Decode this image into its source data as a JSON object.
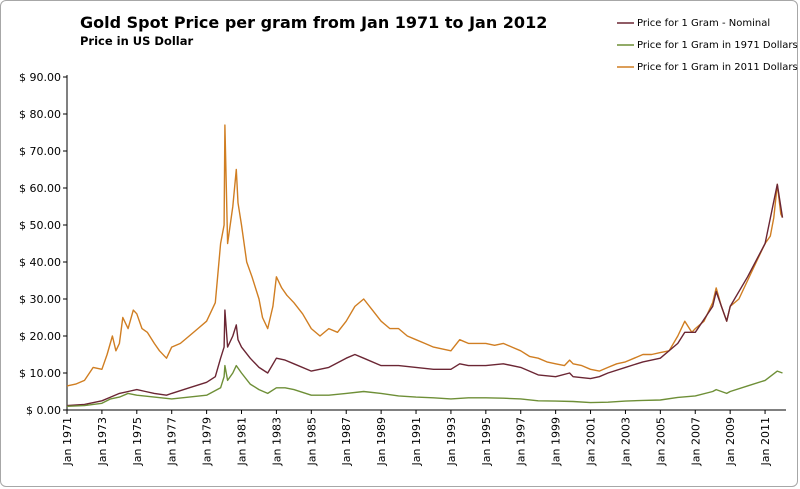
{
  "chart_data": {
    "type": "line",
    "title": "Gold Spot Price per gram from Jan 1971 to Jan 2012",
    "subtitle": "Price in US Dollar",
    "xlabel": "",
    "ylabel": "",
    "xlim": [
      1971,
      2012.2
    ],
    "ylim": [
      0,
      90
    ],
    "y_ticks": [
      0,
      10,
      20,
      30,
      40,
      50,
      60,
      70,
      80,
      90
    ],
    "y_tick_labels": [
      "$ 0.00",
      "$ 10.00",
      "$ 20.00",
      "$ 30.00",
      "$ 40.00",
      "$ 50.00",
      "$ 60.00",
      "$ 70.00",
      "$ 80.00",
      "$ 90.00"
    ],
    "x_ticks": [
      1971,
      1973,
      1975,
      1977,
      1979,
      1981,
      1983,
      1985,
      1987,
      1989,
      1991,
      1993,
      1995,
      1997,
      1999,
      2001,
      2003,
      2005,
      2007,
      2009,
      2011
    ],
    "x_tick_labels": [
      "Jan 1971",
      "Jan 1973",
      "Jan 1975",
      "Jan 1977",
      "Jan 1979",
      "Jan 1981",
      "Jan 1983",
      "Jan 1985",
      "Jan 1987",
      "Jan 1989",
      "Jan 1991",
      "Jan 1993",
      "Jan 1995",
      "Jan 1997",
      "Jan 1999",
      "Jan 2001",
      "Jan 2003",
      "Jan 2005",
      "Jan 2007",
      "Jan 2009",
      "Jan 2011"
    ],
    "grid": false,
    "legend_position": "top-right",
    "series": [
      {
        "name": "Price for 1 Gram in 2011 Dollars",
        "color": "#d07e22",
        "x": [
          1971.0,
          1971.5,
          1972.0,
          1972.5,
          1973.0,
          1973.3,
          1973.6,
          1973.8,
          1974.0,
          1974.2,
          1974.5,
          1974.8,
          1975.0,
          1975.3,
          1975.6,
          1976.0,
          1976.3,
          1976.7,
          1977.0,
          1977.5,
          1978.0,
          1978.5,
          1979.0,
          1979.5,
          1979.8,
          1980.0,
          1980.05,
          1980.2,
          1980.5,
          1980.7,
          1980.8,
          1981.0,
          1981.3,
          1981.6,
          1982.0,
          1982.2,
          1982.5,
          1982.8,
          1983.0,
          1983.3,
          1983.6,
          1984.0,
          1984.5,
          1985.0,
          1985.5,
          1986.0,
          1986.5,
          1987.0,
          1987.5,
          1988.0,
          1988.5,
          1989.0,
          1989.5,
          1990.0,
          1990.5,
          1991.0,
          1991.5,
          1992.0,
          1992.5,
          1993.0,
          1993.5,
          1994.0,
          1994.5,
          1995.0,
          1995.5,
          1996.0,
          1996.5,
          1997.0,
          1997.5,
          1998.0,
          1998.5,
          1999.0,
          1999.5,
          1999.8,
          2000.0,
          2000.5,
          2001.0,
          2001.5,
          2002.0,
          2002.5,
          2003.0,
          2003.5,
          2004.0,
          2004.5,
          2005.0,
          2005.5,
          2006.0,
          2006.4,
          2006.8,
          2007.0,
          2007.5,
          2008.0,
          2008.2,
          2008.5,
          2008.8,
          2009.0,
          2009.5,
          2010.0,
          2010.5,
          2011.0,
          2011.3,
          2011.5,
          2011.7,
          2011.9,
          2012.0
        ],
        "values": [
          6.5,
          7.0,
          8.0,
          11.5,
          11.0,
          15.0,
          20.0,
          16.0,
          18.0,
          25.0,
          22.0,
          27.0,
          26.0,
          22.0,
          21.0,
          18.0,
          16.0,
          14.0,
          17.0,
          18.0,
          20.0,
          22.0,
          24.0,
          29.0,
          45.0,
          50.0,
          77.0,
          45.0,
          55.0,
          65.0,
          56.0,
          50.0,
          40.0,
          36.0,
          30.0,
          25.0,
          22.0,
          28.0,
          36.0,
          33.0,
          31.0,
          29.0,
          26.0,
          22.0,
          20.0,
          22.0,
          21.0,
          24.0,
          28.0,
          30.0,
          27.0,
          24.0,
          22.0,
          22.0,
          20.0,
          19.0,
          18.0,
          17.0,
          16.5,
          16.0,
          19.0,
          18.0,
          18.0,
          18.0,
          17.5,
          18.0,
          17.0,
          16.0,
          14.5,
          14.0,
          13.0,
          12.5,
          12.0,
          13.5,
          12.5,
          12.0,
          11.0,
          10.5,
          11.5,
          12.5,
          13.0,
          14.0,
          15.0,
          15.0,
          15.5,
          16.0,
          20.0,
          24.0,
          21.0,
          22.0,
          24.0,
          29.0,
          33.0,
          28.0,
          24.0,
          28.0,
          30.0,
          35.0,
          40.0,
          45.0,
          47.0,
          52.0,
          61.0,
          53.0,
          52.0
        ]
      },
      {
        "name": "Price for 1 Gram - Nominal",
        "color": "#6b2634",
        "x": [
          1971.0,
          1972.0,
          1973.0,
          1973.5,
          1974.0,
          1974.5,
          1975.0,
          1975.5,
          1976.0,
          1976.7,
          1977.0,
          1978.0,
          1979.0,
          1979.5,
          1979.8,
          1980.0,
          1980.05,
          1980.2,
          1980.5,
          1980.7,
          1980.8,
          1981.0,
          1981.5,
          1982.0,
          1982.5,
          1983.0,
          1983.5,
          1984.0,
          1985.0,
          1986.0,
          1987.0,
          1987.5,
          1988.0,
          1989.0,
          1990.0,
          1991.0,
          1992.0,
          1993.0,
          1993.5,
          1994.0,
          1995.0,
          1996.0,
          1997.0,
          1998.0,
          1999.0,
          1999.8,
          2000.0,
          2001.0,
          2001.5,
          2002.0,
          2003.0,
          2004.0,
          2005.0,
          2006.0,
          2006.4,
          2007.0,
          2008.0,
          2008.2,
          2008.8,
          2009.0,
          2010.0,
          2011.0,
          2011.7,
          2012.0
        ],
        "values": [
          1.2,
          1.5,
          2.5,
          3.5,
          4.5,
          5.0,
          5.5,
          5.0,
          4.5,
          4.0,
          4.5,
          6.0,
          7.5,
          9.0,
          14.0,
          17.0,
          27.0,
          17.0,
          20.0,
          23.0,
          19.0,
          17.0,
          14.0,
          11.5,
          10.0,
          14.0,
          13.5,
          12.5,
          10.5,
          11.5,
          14.0,
          15.0,
          14.0,
          12.0,
          12.0,
          11.5,
          11.0,
          11.0,
          12.5,
          12.0,
          12.0,
          12.5,
          11.5,
          9.5,
          9.0,
          10.0,
          9.0,
          8.5,
          9.0,
          10.0,
          11.5,
          13.0,
          14.0,
          18.0,
          21.0,
          21.0,
          28.0,
          32.0,
          24.0,
          28.0,
          36.0,
          45.0,
          61.0,
          52.0
        ]
      },
      {
        "name": "Price for 1 Gram in 1971 Dollars",
        "color": "#6e8f37",
        "x": [
          1971.0,
          1972.0,
          1973.0,
          1973.5,
          1974.0,
          1974.5,
          1975.0,
          1976.0,
          1977.0,
          1978.0,
          1979.0,
          1979.8,
          1980.0,
          1980.05,
          1980.2,
          1980.5,
          1980.7,
          1981.0,
          1981.5,
          1982.0,
          1982.5,
          1983.0,
          1983.5,
          1984.0,
          1985.0,
          1986.0,
          1987.0,
          1988.0,
          1989.0,
          1990.0,
          1991.0,
          1992.0,
          1993.0,
          1994.0,
          1995.0,
          1996.0,
          1997.0,
          1998.0,
          1999.0,
          2000.0,
          2001.0,
          2002.0,
          2003.0,
          2004.0,
          2005.0,
          2006.0,
          2007.0,
          2008.0,
          2008.2,
          2008.8,
          2009.0,
          2010.0,
          2011.0,
          2011.7,
          2012.0
        ],
        "values": [
          1.0,
          1.2,
          1.8,
          3.0,
          3.5,
          4.5,
          4.0,
          3.5,
          3.0,
          3.5,
          4.0,
          6.0,
          9.0,
          12.0,
          8.0,
          10.0,
          12.0,
          10.0,
          7.0,
          5.5,
          4.5,
          6.0,
          6.0,
          5.5,
          4.0,
          4.0,
          4.5,
          5.0,
          4.5,
          3.8,
          3.5,
          3.3,
          3.0,
          3.3,
          3.3,
          3.2,
          3.0,
          2.5,
          2.4,
          2.3,
          2.0,
          2.1,
          2.4,
          2.6,
          2.7,
          3.4,
          3.8,
          5.0,
          5.5,
          4.5,
          5.0,
          6.5,
          8.0,
          10.5,
          10.0
        ]
      }
    ]
  }
}
